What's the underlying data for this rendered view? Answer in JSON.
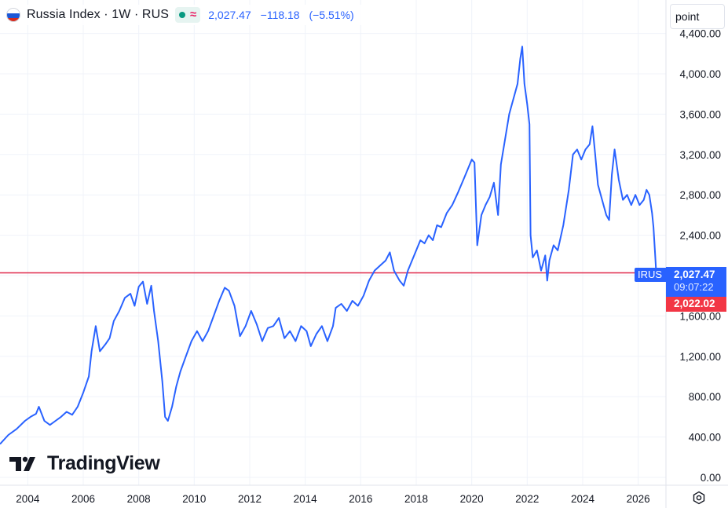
{
  "header": {
    "title": "Russia Index · 1W · RUS",
    "price": "2,027.47",
    "change": "−118.18",
    "change_pct": "(−5.51%)"
  },
  "unit_button": {
    "label": "point"
  },
  "watermark": {
    "text": "TradingView"
  },
  "colors": {
    "line": "#2962ff",
    "price_line": "#e0294a",
    "low_tag": "#f23645",
    "grid": "#f0f3fa"
  },
  "price_tags": {
    "symbol": "IRUS",
    "last": "2,027.47",
    "countdown": "09:07:22",
    "low": "2,022.02"
  },
  "chart_data": {
    "type": "line",
    "series": [
      {
        "values": [
          [
            2003.0,
            330
          ],
          [
            2003.3,
            420
          ],
          [
            2003.6,
            480
          ],
          [
            2003.9,
            560
          ],
          [
            2004.1,
            600
          ],
          [
            2004.3,
            630
          ],
          [
            2004.4,
            700
          ],
          [
            2004.6,
            560
          ],
          [
            2004.8,
            520
          ],
          [
            2005.0,
            560
          ],
          [
            2005.2,
            600
          ],
          [
            2005.4,
            650
          ],
          [
            2005.6,
            620
          ],
          [
            2005.8,
            700
          ],
          [
            2006.0,
            840
          ],
          [
            2006.2,
            1000
          ],
          [
            2006.3,
            1250
          ],
          [
            2006.45,
            1500
          ],
          [
            2006.6,
            1250
          ],
          [
            2006.8,
            1320
          ],
          [
            2006.95,
            1380
          ],
          [
            2007.1,
            1550
          ],
          [
            2007.3,
            1650
          ],
          [
            2007.5,
            1780
          ],
          [
            2007.7,
            1820
          ],
          [
            2007.85,
            1700
          ],
          [
            2008.0,
            1890
          ],
          [
            2008.15,
            1940
          ],
          [
            2008.3,
            1720
          ],
          [
            2008.45,
            1900
          ],
          [
            2008.55,
            1650
          ],
          [
            2008.7,
            1350
          ],
          [
            2008.85,
            950
          ],
          [
            2008.95,
            600
          ],
          [
            2009.05,
            560
          ],
          [
            2009.2,
            700
          ],
          [
            2009.35,
            900
          ],
          [
            2009.5,
            1050
          ],
          [
            2009.7,
            1200
          ],
          [
            2009.9,
            1350
          ],
          [
            2010.1,
            1450
          ],
          [
            2010.3,
            1350
          ],
          [
            2010.5,
            1450
          ],
          [
            2010.7,
            1600
          ],
          [
            2010.9,
            1750
          ],
          [
            2011.1,
            1880
          ],
          [
            2011.25,
            1850
          ],
          [
            2011.45,
            1700
          ],
          [
            2011.65,
            1400
          ],
          [
            2011.85,
            1500
          ],
          [
            2012.05,
            1650
          ],
          [
            2012.25,
            1520
          ],
          [
            2012.45,
            1350
          ],
          [
            2012.65,
            1480
          ],
          [
            2012.85,
            1500
          ],
          [
            2013.05,
            1580
          ],
          [
            2013.25,
            1380
          ],
          [
            2013.45,
            1450
          ],
          [
            2013.65,
            1350
          ],
          [
            2013.85,
            1500
          ],
          [
            2014.05,
            1450
          ],
          [
            2014.2,
            1300
          ],
          [
            2014.4,
            1420
          ],
          [
            2014.6,
            1500
          ],
          [
            2014.8,
            1350
          ],
          [
            2015.0,
            1500
          ],
          [
            2015.1,
            1680
          ],
          [
            2015.3,
            1720
          ],
          [
            2015.5,
            1650
          ],
          [
            2015.7,
            1750
          ],
          [
            2015.9,
            1700
          ],
          [
            2016.1,
            1800
          ],
          [
            2016.3,
            1950
          ],
          [
            2016.5,
            2050
          ],
          [
            2016.7,
            2100
          ],
          [
            2016.9,
            2150
          ],
          [
            2017.05,
            2230
          ],
          [
            2017.2,
            2050
          ],
          [
            2017.4,
            1950
          ],
          [
            2017.55,
            1900
          ],
          [
            2017.7,
            2050
          ],
          [
            2017.85,
            2150
          ],
          [
            2018.0,
            2250
          ],
          [
            2018.15,
            2350
          ],
          [
            2018.3,
            2320
          ],
          [
            2018.45,
            2400
          ],
          [
            2018.6,
            2350
          ],
          [
            2018.75,
            2500
          ],
          [
            2018.9,
            2480
          ],
          [
            2019.1,
            2620
          ],
          [
            2019.3,
            2700
          ],
          [
            2019.5,
            2820
          ],
          [
            2019.7,
            2950
          ],
          [
            2019.85,
            3050
          ],
          [
            2020.0,
            3150
          ],
          [
            2020.1,
            3120
          ],
          [
            2020.2,
            2300
          ],
          [
            2020.35,
            2600
          ],
          [
            2020.5,
            2700
          ],
          [
            2020.65,
            2780
          ],
          [
            2020.8,
            2920
          ],
          [
            2020.95,
            2600
          ],
          [
            2021.05,
            3100
          ],
          [
            2021.2,
            3350
          ],
          [
            2021.35,
            3600
          ],
          [
            2021.5,
            3750
          ],
          [
            2021.65,
            3900
          ],
          [
            2021.75,
            4150
          ],
          [
            2021.82,
            4270
          ],
          [
            2021.9,
            3900
          ],
          [
            2022.0,
            3700
          ],
          [
            2022.08,
            3500
          ],
          [
            2022.12,
            2400
          ],
          [
            2022.2,
            2180
          ],
          [
            2022.35,
            2250
          ],
          [
            2022.5,
            2050
          ],
          [
            2022.65,
            2200
          ],
          [
            2022.72,
            1950
          ],
          [
            2022.8,
            2150
          ],
          [
            2022.95,
            2300
          ],
          [
            2023.1,
            2250
          ],
          [
            2023.3,
            2500
          ],
          [
            2023.5,
            2850
          ],
          [
            2023.65,
            3200
          ],
          [
            2023.8,
            3250
          ],
          [
            2023.95,
            3150
          ],
          [
            2024.1,
            3250
          ],
          [
            2024.25,
            3300
          ],
          [
            2024.35,
            3480
          ],
          [
            2024.45,
            3200
          ],
          [
            2024.55,
            2900
          ],
          [
            2024.7,
            2750
          ],
          [
            2024.85,
            2600
          ],
          [
            2024.95,
            2550
          ],
          [
            2025.05,
            3000
          ],
          [
            2025.15,
            3250
          ],
          [
            2025.3,
            2950
          ],
          [
            2025.45,
            2750
          ],
          [
            2025.6,
            2800
          ],
          [
            2025.75,
            2700
          ],
          [
            2025.9,
            2800
          ],
          [
            2026.05,
            2700
          ],
          [
            2026.2,
            2750
          ],
          [
            2026.3,
            2850
          ],
          [
            2026.4,
            2800
          ],
          [
            2026.5,
            2620
          ],
          [
            2026.55,
            2480
          ],
          [
            2026.6,
            2250
          ],
          [
            2026.65,
            2027.47
          ]
        ]
      }
    ],
    "x_ticks": [
      "2004",
      "2006",
      "2008",
      "2010",
      "2012",
      "2014",
      "2016",
      "2018",
      "2020",
      "2022",
      "2024",
      "2026"
    ],
    "x_tick_values": [
      2004,
      2006,
      2008,
      2010,
      2012,
      2014,
      2016,
      2018,
      2020,
      2022,
      2024,
      2026
    ],
    "y_ticks": [
      "0.00",
      "400.00",
      "800.00",
      "1,200.00",
      "1,600.00",
      "2,000.00",
      "2,400.00",
      "2,800.00",
      "3,200.00",
      "3,600.00",
      "4,000.00",
      "4,400.00"
    ],
    "y_tick_values": [
      0,
      400,
      800,
      1200,
      1600,
      2000,
      2400,
      2800,
      3200,
      3600,
      4000,
      4400
    ],
    "xlim": [
      2003.0,
      2027.0
    ],
    "ylim": [
      0,
      4500
    ],
    "last_price_line": 2027.47,
    "grid": true,
    "xlabel": "",
    "ylabel": ""
  }
}
